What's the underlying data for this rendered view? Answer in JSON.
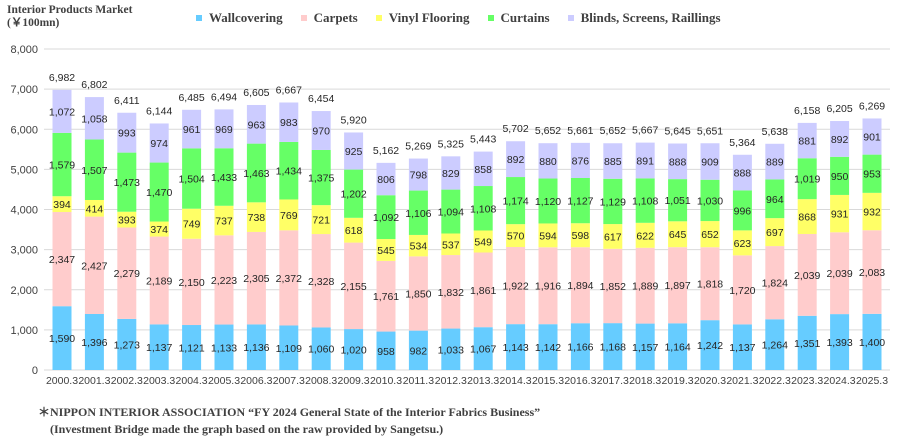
{
  "chart_data": {
    "type": "bar",
    "stacked": true,
    "title": "Interior Products Market",
    "subtitle": "(￥100mn)",
    "xlabel": "",
    "ylabel": "",
    "ylim": [
      0,
      8000
    ],
    "yticks": [
      0,
      1000,
      2000,
      3000,
      4000,
      5000,
      6000,
      7000,
      8000
    ],
    "ytick_labels": [
      "0",
      "1,000",
      "2,000",
      "3,000",
      "4,000",
      "5,000",
      "6,000",
      "7,000",
      "8,000"
    ],
    "grid": true,
    "legend_position": "top",
    "categories": [
      "2000.3",
      "2001.3",
      "2002.3",
      "2003.3",
      "2004.3",
      "2005.3",
      "2006.3",
      "2007.3",
      "2008.3",
      "2009.3",
      "2010.3",
      "2011.3",
      "2012.3",
      "2013.3",
      "2014.3",
      "2015.3",
      "2016.3",
      "2017.3",
      "2018.3",
      "2019.3",
      "2020.3",
      "2021.3",
      "2022.3",
      "2023.3",
      "2024.3",
      "2025.3"
    ],
    "series": [
      {
        "name": "Wallcovering",
        "color": "#66ccff",
        "values": [
          1590,
          1396,
          1273,
          1137,
          1121,
          1133,
          1136,
          1109,
          1060,
          1020,
          958,
          982,
          1033,
          1067,
          1143,
          1142,
          1166,
          1168,
          1157,
          1164,
          1242,
          1137,
          1264,
          1351,
          1393,
          1400
        ]
      },
      {
        "name": "Carpets",
        "color": "#ffcccc",
        "values": [
          2347,
          2427,
          2279,
          2189,
          2150,
          2223,
          2305,
          2372,
          2328,
          2155,
          1761,
          1850,
          1832,
          1861,
          1922,
          1916,
          1894,
          1852,
          1889,
          1897,
          1818,
          1720,
          1824,
          2039,
          2039,
          2083
        ]
      },
      {
        "name": "Vinyl Flooring",
        "color": "#ffff66",
        "values": [
          394,
          414,
          393,
          374,
          749,
          737,
          738,
          769,
          721,
          618,
          545,
          534,
          537,
          549,
          570,
          594,
          598,
          617,
          622,
          645,
          652,
          623,
          697,
          868,
          931,
          932
        ]
      },
      {
        "name": "Curtains",
        "color": "#66ff66",
        "values": [
          1579,
          1507,
          1473,
          1470,
          1504,
          1433,
          1463,
          1434,
          1375,
          1202,
          1092,
          1106,
          1094,
          1108,
          1174,
          1120,
          1127,
          1129,
          1108,
          1051,
          1030,
          996,
          964,
          1019,
          950,
          953
        ]
      },
      {
        "name": "Blinds, Screens, Raillings",
        "color": "#ccccff",
        "values": [
          1072,
          1058,
          993,
          974,
          961,
          969,
          963,
          983,
          970,
          925,
          806,
          798,
          829,
          858,
          892,
          880,
          876,
          885,
          891,
          888,
          909,
          888,
          889,
          881,
          892,
          901
        ]
      }
    ],
    "totals": [
      6982,
      6802,
      6411,
      6144,
      6485,
      6494,
      6605,
      6667,
      6454,
      5920,
      5162,
      5269,
      5325,
      5443,
      5702,
      5652,
      5661,
      5652,
      5667,
      5645,
      5651,
      5364,
      5638,
      6158,
      6205,
      6269
    ]
  },
  "source_note": {
    "line1": "＊NIPPON  INTERIOR  ASSOCIATION “FY 2024 General State of the Interior Fabrics Business”",
    "line2": "(Investment Bridge made the graph based on the raw provided by Sangetsu.)"
  }
}
